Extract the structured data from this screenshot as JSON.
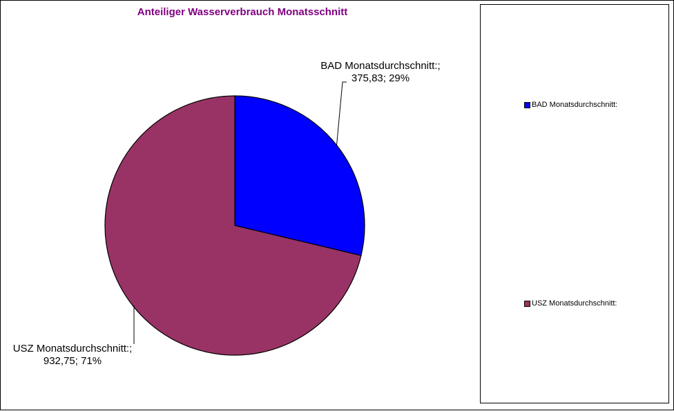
{
  "chart_data": {
    "type": "pie",
    "title": "Anteiliger Wasserverbrauch Monatsschnitt",
    "slices": [
      {
        "name": "BAD Monatsdurchschnitt:",
        "value": 375.83,
        "percent": 29,
        "color": "#0000FF",
        "label_line1": "BAD Monatsdurchschnitt:;",
        "label_line2": "375,83; 29%"
      },
      {
        "name": "USZ Monatsdurchschnitt:",
        "value": 932.75,
        "percent": 71,
        "color": "#993366",
        "label_line1": "USZ Monatsdurchschnitt:;",
        "label_line2": "932,75; 71%"
      }
    ],
    "start_angle": "12 o'clock",
    "direction": "clockwise",
    "legend": {
      "position": "right",
      "entries": [
        "BAD Monatsdurchschnitt:",
        "USZ Monatsdurchschnitt:"
      ]
    }
  }
}
